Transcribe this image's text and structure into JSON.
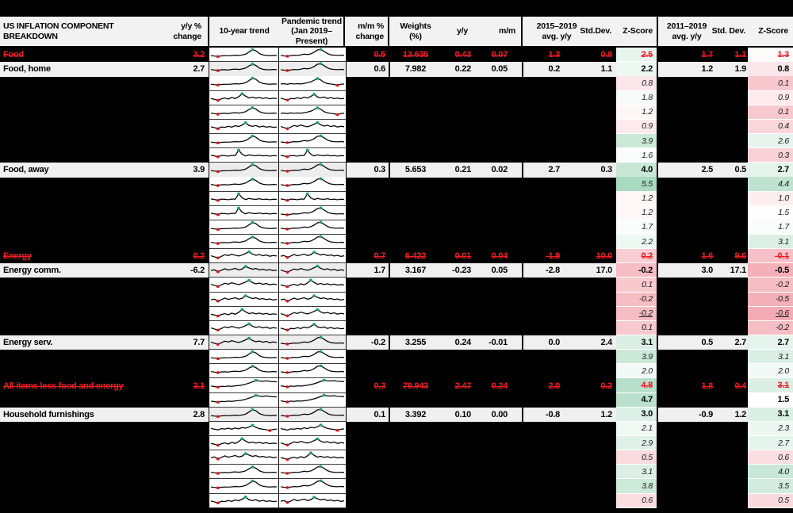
{
  "header": {
    "title": "US INFLATION COMPONENT BREAKDOWN",
    "yy_change": "y/y %\nchange",
    "trend10": "10-year trend",
    "pandemic": "Pandemic trend\n(Jan 2019–Present)",
    "mm_change": "m/m %\nchange",
    "weights": "Weights\n(%)",
    "yy": "y/y",
    "mm": "m/m",
    "avg1": "2015–2019\navg. y/y",
    "sd1": "Std.Dev.",
    "z1": "Z-Score",
    "avg2": "2011–2019\navg. y/y",
    "sd2": "Std. Dev.",
    "z2": "Z-Score"
  },
  "style": {
    "accent_red": "#ee1c25",
    "row_bg": "#f0f0f0",
    "header_bg": "#f2f2f2",
    "spark_bg": "#ffffff",
    "marker_red": "#d7191c",
    "marker_green": "#1fa35c",
    "scale_green_max": "#a7d8bf",
    "scale_pink_max": "#f2a8b2",
    "z_white_midpoint": 1.4,
    "z_green_endpoint": 5.6,
    "z_pink_endpoint": -0.7
  },
  "table": {
    "rows": [
      {
        "t": "r",
        "label": "Food",
        "yy": "3.2",
        "mm": "0.5",
        "w": "13.635",
        "yym": "0.43",
        "mmm": "0.07",
        "a1": "1.3",
        "d1": "0.8",
        "z1": "2.5",
        "a2": "1.7",
        "d2": "1.1",
        "z2": "1.3",
        "sp1": "hump",
        "sp2": "humpP"
      },
      {
        "t": "v",
        "label": "Food, home",
        "yy": "2.7",
        "mm": "0.6",
        "w": "7.982",
        "yym": "0.22",
        "mmm": "0.05",
        "a1": "0.2",
        "d1": "1.1",
        "z1": "2.2",
        "a2": "1.2",
        "d2": "1.9",
        "z2": "0.8",
        "sp1": "hump2",
        "sp2": "humpP"
      },
      {
        "t": "h",
        "z1": "0.8",
        "z2": "0.1",
        "sp1": "hump",
        "sp2": "humpEnd"
      },
      {
        "t": "h",
        "z1": "1.8",
        "z2": "0.9",
        "sp1": "jagged",
        "sp2": "jagged2"
      },
      {
        "t": "h",
        "z1": "1.2",
        "z2": "0.1",
        "sp1": "hump2",
        "sp2": "humpEnd"
      },
      {
        "t": "h",
        "z1": "0.9",
        "z2": "0.4",
        "sp1": "jagged2",
        "sp2": "wavy"
      },
      {
        "t": "h",
        "z1": "3.9",
        "z2": "2.6",
        "sp1": "hump",
        "sp2": "humpP"
      },
      {
        "t": "h",
        "z1": "1.6",
        "z2": "0.3",
        "sp1": "spikes",
        "sp2": "spikes"
      },
      {
        "t": "v",
        "label": "Food, away",
        "yy": "3.9",
        "mm": "0.3",
        "w": "5.653",
        "yym": "0.21",
        "mmm": "0.02",
        "a1": "2.7",
        "d1": "0.3",
        "z1": "4.0",
        "a2": "2.5",
        "d2": "0.5",
        "z2": "2.7",
        "sp1": "hump",
        "sp2": "humpP"
      },
      {
        "t": "h",
        "z1": "5.5",
        "z2": "4.4",
        "sp1": "hump2",
        "sp2": "humpP"
      },
      {
        "t": "h",
        "z1": "1.2",
        "z2": "1.0",
        "sp1": "spikes",
        "sp2": "spikes"
      },
      {
        "t": "h",
        "z1": "1.2",
        "z2": "1.5",
        "sp1": "spikes",
        "sp2": "humpP"
      },
      {
        "t": "h",
        "z1": "1.7",
        "z2": "1.7",
        "sp1": "hump",
        "sp2": "humpP"
      },
      {
        "t": "h",
        "z1": "2.2",
        "z2": "3.1",
        "sp1": "hump2",
        "sp2": "humpP"
      },
      {
        "t": "r",
        "label": "Energy",
        "yy": "0.2",
        "mm": "0.7",
        "w": "6.422",
        "yym": "0.01",
        "mmm": "0.04",
        "a1": "-1.9",
        "d1": "10.0",
        "z1": "0.2",
        "a2": "1.6",
        "d2": "9.6",
        "z2": "-0.1",
        "sp1": "wavy",
        "sp2": "wavy2"
      },
      {
        "t": "v",
        "label": "Energy comm.",
        "yy": "-6.2",
        "mm": "1.7",
        "w": "3.167",
        "yym": "-0.23",
        "mmm": "0.05",
        "a1": "-2.8",
        "d1": "17.0",
        "z1": "-0.2",
        "a2": "3.0",
        "d2": "17.1",
        "z2": "-0.5",
        "sp1": "wavy2",
        "sp2": "wavy"
      },
      {
        "t": "h",
        "z1": "0.1",
        "z2": "-0.2",
        "sp1": "wavy",
        "sp2": "jagged"
      },
      {
        "t": "h",
        "z1": "-0.2",
        "z2": "-0.5",
        "sp1": "wavy2",
        "sp2": "wavy2"
      },
      {
        "t": "h",
        "u": true,
        "z1": "-0.2",
        "z2": "-0.6",
        "sp1": "jagged",
        "sp2": "wavy"
      },
      {
        "t": "h",
        "z1": "0.1",
        "z2": "-0.2",
        "sp1": "wavy",
        "sp2": "jagged2"
      },
      {
        "t": "v",
        "label": "Energy serv.",
        "yy": "7.7",
        "mm": "-0.2",
        "w": "3.255",
        "yym": "0.24",
        "mmm": "-0.01",
        "a1": "0.0",
        "d1": "2.4",
        "z1": "3.1",
        "a2": "0.5",
        "d2": "2.7",
        "z2": "2.7",
        "sp1": "wavy",
        "sp2": "humpP"
      },
      {
        "t": "h",
        "z1": "3.9",
        "z2": "3.1",
        "sp1": "hump",
        "sp2": "humpP"
      },
      {
        "t": "h",
        "z1": "2.0",
        "z2": "2.0",
        "sp1": "hump2",
        "sp2": "humpP"
      },
      {
        "t": "r",
        "label": "All items less food and energy",
        "yy": "3.1",
        "mm": "0.3",
        "w": "79.943",
        "yym": "2.47",
        "mmm": "0.24",
        "a1": "2.0",
        "d1": "0.2",
        "z1": "4.8",
        "a2": "1.8",
        "d2": "0.4",
        "z2": "3.1",
        "sp1": "rise",
        "sp2": "rise2"
      },
      {
        "t": "h",
        "zb": true,
        "z1": "4.7",
        "z2": "1.5",
        "sp1": "rise",
        "sp2": "rise2"
      },
      {
        "t": "v",
        "label": "Household furnishings",
        "yy": "2.8",
        "mm": "0.1",
        "w": "3.392",
        "yym": "0.10",
        "mmm": "0.00",
        "a1": "-0.8",
        "d1": "1.2",
        "z1": "3.0",
        "a2": "-0.9",
        "d2": "1.2",
        "z2": "3.1",
        "sp1": "hump",
        "sp2": "humpP"
      },
      {
        "t": "h",
        "z1": "2.1",
        "z2": "2.3",
        "sp1": "noisy",
        "sp2": "noisy2"
      },
      {
        "t": "h",
        "z1": "2.9",
        "z2": "2.7",
        "sp1": "jagged",
        "sp2": "wavy"
      },
      {
        "t": "h",
        "z1": "0.5",
        "z2": "0.6",
        "sp1": "wavy2",
        "sp2": "jagged"
      },
      {
        "t": "h",
        "z1": "3.1",
        "z2": "4.0",
        "sp1": "hump2",
        "sp2": "humpP"
      },
      {
        "t": "h",
        "z1": "3.8",
        "z2": "3.5",
        "sp1": "hump",
        "sp2": "humpP"
      },
      {
        "t": "h",
        "z1": "0.6",
        "z2": "0.5",
        "sp1": "jagged2",
        "sp2": "wavy2"
      }
    ]
  },
  "sparklines": {
    "shapes": {
      "hump": [
        38,
        34,
        30,
        36,
        38,
        37,
        39,
        42,
        40,
        44,
        52,
        72,
        95,
        84,
        58,
        45,
        40,
        38,
        40,
        39
      ],
      "hump2": [
        42,
        37,
        32,
        39,
        41,
        38,
        43,
        46,
        42,
        47,
        56,
        76,
        93,
        80,
        56,
        44,
        41,
        39,
        42,
        40
      ],
      "humpP": [
        40,
        36,
        33,
        38,
        42,
        40,
        45,
        52,
        48,
        55,
        70,
        92,
        97,
        78,
        58,
        46,
        42,
        40,
        43,
        41
      ],
      "humpEnd": [
        40,
        42,
        38,
        44,
        40,
        43,
        41,
        46,
        52,
        60,
        75,
        92,
        78,
        56,
        44,
        40,
        36,
        28,
        38,
        41
      ],
      "jagged": [
        45,
        38,
        28,
        42,
        50,
        40,
        55,
        45,
        62,
        90,
        68,
        50,
        58,
        48,
        55,
        45,
        52,
        42,
        48,
        44
      ],
      "jagged2": [
        48,
        40,
        30,
        46,
        42,
        52,
        44,
        58,
        50,
        64,
        86,
        60,
        52,
        60,
        46,
        54,
        44,
        50,
        42,
        46
      ],
      "wavy": [
        50,
        40,
        30,
        45,
        60,
        52,
        64,
        55,
        48,
        58,
        72,
        88,
        66,
        55,
        62,
        50,
        58,
        46,
        52,
        48
      ],
      "wavy2": [
        46,
        52,
        34,
        48,
        62,
        50,
        58,
        66,
        52,
        60,
        84,
        70,
        58,
        64,
        52,
        58,
        48,
        54,
        44,
        50
      ],
      "spikes": [
        48,
        42,
        34,
        46,
        44,
        40,
        47,
        45,
        96,
        58,
        42,
        52,
        46,
        44,
        50,
        42,
        46,
        40,
        45,
        43
      ],
      "noisy": [
        52,
        45,
        38,
        50,
        46,
        54,
        44,
        56,
        48,
        60,
        55,
        65,
        82,
        62,
        50,
        44,
        40,
        32,
        42,
        46
      ],
      "noisy2": [
        50,
        44,
        36,
        48,
        44,
        52,
        46,
        58,
        50,
        62,
        57,
        68,
        84,
        64,
        52,
        46,
        42,
        34,
        44,
        48
      ],
      "rise": [
        40,
        36,
        30,
        38,
        36,
        40,
        38,
        42,
        45,
        50,
        58,
        68,
        80,
        94,
        88,
        86,
        90,
        84,
        82,
        80
      ],
      "rise2": [
        42,
        38,
        32,
        40,
        38,
        42,
        40,
        44,
        48,
        54,
        62,
        72,
        84,
        96,
        90,
        88,
        92,
        86,
        84,
        82
      ]
    }
  }
}
